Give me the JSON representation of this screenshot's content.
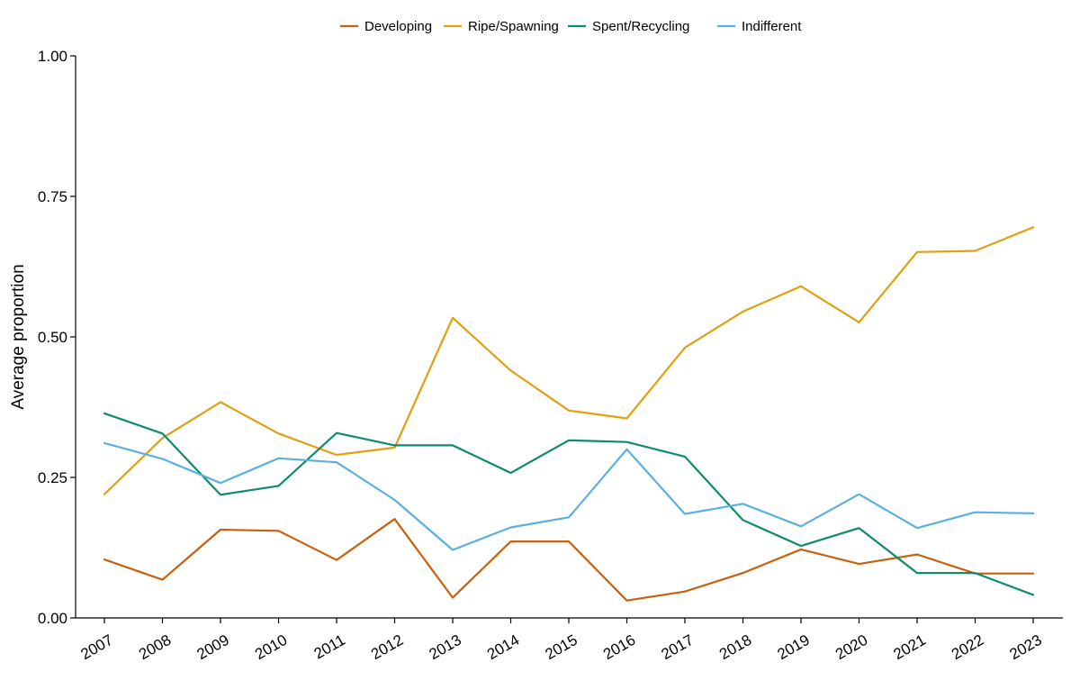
{
  "chart_data": {
    "type": "line",
    "title": "",
    "xlabel": "",
    "ylabel": "Average proportion",
    "ylim": [
      0,
      1
    ],
    "yticks": [
      "0.00",
      "0.25",
      "0.50",
      "0.75",
      "1.00"
    ],
    "ytick_values": [
      0,
      0.25,
      0.5,
      0.75,
      1.0
    ],
    "grid": false,
    "legend_position": "top",
    "x": [
      "2007",
      "2008",
      "2009",
      "2010",
      "2011",
      "2012",
      "2013",
      "2014",
      "2015",
      "2016",
      "2017",
      "2018",
      "2019",
      "2020",
      "2021",
      "2022",
      "2023"
    ],
    "series": [
      {
        "name": "Developing",
        "color": "#C8600E",
        "values": [
          0.104,
          0.068,
          0.157,
          0.155,
          0.103,
          0.176,
          0.036,
          0.136,
          0.136,
          0.031,
          0.047,
          0.08,
          0.122,
          0.096,
          0.113,
          0.079,
          0.079
        ]
      },
      {
        "name": "Ripe/Spawning",
        "color": "#E0A010",
        "values": [
          0.22,
          0.32,
          0.384,
          0.328,
          0.29,
          0.303,
          0.534,
          0.44,
          0.369,
          0.355,
          0.481,
          0.545,
          0.59,
          0.526,
          0.651,
          0.653,
          0.695
        ]
      },
      {
        "name": "Spent/Recycling",
        "color": "#0E8C6E",
        "values": [
          0.364,
          0.328,
          0.219,
          0.235,
          0.329,
          0.307,
          0.307,
          0.258,
          0.316,
          0.313,
          0.287,
          0.174,
          0.128,
          0.16,
          0.08,
          0.08,
          0.041
        ]
      },
      {
        "name": "Indifferent",
        "color": "#5AB0E0",
        "values": [
          0.311,
          0.283,
          0.24,
          0.284,
          0.277,
          0.21,
          0.121,
          0.161,
          0.179,
          0.3,
          0.185,
          0.203,
          0.163,
          0.22,
          0.16,
          0.188,
          0.186
        ]
      }
    ]
  }
}
